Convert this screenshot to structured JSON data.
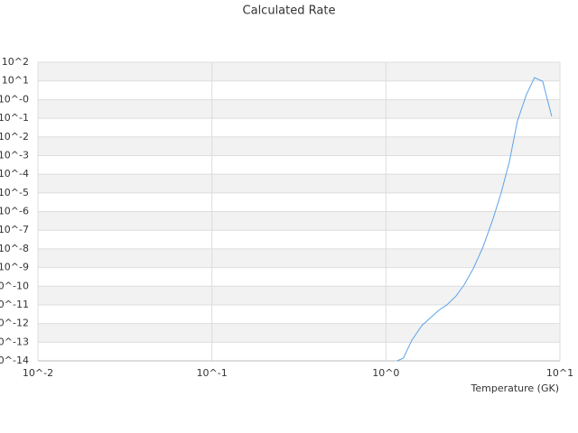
{
  "chart_data": {
    "type": "line",
    "title": "Calculated Rate",
    "x_label": "Temperature (GK)",
    "xscale": "log",
    "yscale": "log",
    "grid": true,
    "bands": true,
    "xlim": [
      0.01,
      10
    ],
    "ylim": [
      1e-14,
      100
    ],
    "xticks": [
      {
        "value": 0.01,
        "label": "10^-2"
      },
      {
        "value": 0.1,
        "label": "10^-1"
      },
      {
        "value": 1,
        "label": "10^0"
      },
      {
        "value": 10,
        "label": "10^1"
      }
    ],
    "yticks": [
      {
        "value": 100,
        "label": "10^2"
      },
      {
        "value": 10,
        "label": "10^1"
      },
      {
        "value": 1,
        "label": "10^-0"
      },
      {
        "value": 0.1,
        "label": "10^-1"
      },
      {
        "value": 0.01,
        "label": "10^-2"
      },
      {
        "value": 0.001,
        "label": "10^-3"
      },
      {
        "value": 0.0001,
        "label": "10^-4"
      },
      {
        "value": 1e-05,
        "label": "10^-5"
      },
      {
        "value": 1e-06,
        "label": "10^-6"
      },
      {
        "value": 1e-07,
        "label": "10^-7"
      },
      {
        "value": 1e-08,
        "label": "10^-8"
      },
      {
        "value": 1e-09,
        "label": "10^-9"
      },
      {
        "value": 1e-10,
        "label": "10^-10"
      },
      {
        "value": 1e-11,
        "label": "10^-11"
      },
      {
        "value": 1e-12,
        "label": "10^-12"
      },
      {
        "value": 1e-13,
        "label": "10^-13"
      },
      {
        "value": 1e-14,
        "label": "10^-14"
      }
    ],
    "series": [
      {
        "color": "#5ba3e8",
        "x": [
          1.16,
          1.26,
          1.41,
          1.61,
          2.01,
          2.24,
          2.53,
          2.81,
          3.17,
          3.61,
          4.12,
          4.59,
          5.11,
          5.7,
          6.41,
          7.14,
          7.96,
          8.97
        ],
        "values": [
          1e-14,
          1.4e-14,
          1.3e-13,
          7.8e-13,
          5.1e-12,
          1e-11,
          3e-11,
          1.15e-10,
          8.5e-10,
          1.23e-08,
          3.9e-07,
          9.8e-06,
          0.00043,
          0.072,
          1.8,
          15,
          9.5,
          0.126
        ]
      }
    ]
  }
}
